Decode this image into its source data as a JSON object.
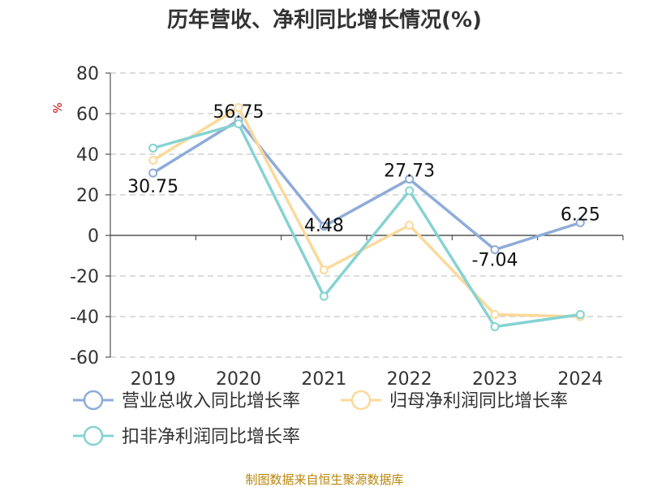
{
  "chart_data": {
    "type": "line",
    "title": "历年营收、净利同比增长情况(%)",
    "ylabel": "%",
    "categories": [
      "2019",
      "2020",
      "2021",
      "2022",
      "2023",
      "2024"
    ],
    "ylim": [
      -60,
      80
    ],
    "yticks": [
      80,
      60,
      40,
      20,
      0,
      -20,
      -40,
      -60
    ],
    "grid": true,
    "legend_position": "bottom",
    "series": [
      {
        "name": "营业总收入同比增长率",
        "color": "#8eacd8",
        "values": [
          30.75,
          56.75,
          4.48,
          27.73,
          -7.04,
          6.25
        ],
        "labels": [
          "30.75",
          "56.75",
          "4.48",
          "27.73",
          "-7.04",
          "6.25"
        ]
      },
      {
        "name": "归母净利润同比增长率",
        "color": "#fbd99a",
        "values": [
          37,
          63,
          -17,
          5,
          -39,
          -40
        ]
      },
      {
        "name": "扣非净利润同比增长率",
        "color": "#85d3d2",
        "values": [
          43,
          55,
          -30,
          22,
          -45,
          -39
        ]
      }
    ]
  },
  "source": "制图数据来自恒生聚源数据库"
}
